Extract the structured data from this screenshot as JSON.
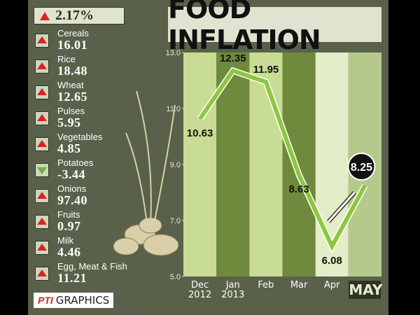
{
  "sidebar": {
    "headline": "2.17%",
    "items": [
      {
        "name": "Cereals",
        "value": "16.01",
        "trend": "up"
      },
      {
        "name": "Rice",
        "value": "18.48",
        "trend": "up"
      },
      {
        "name": "Wheat",
        "value": "12.65",
        "trend": "up"
      },
      {
        "name": "Pulses",
        "value": "5.95",
        "trend": "up"
      },
      {
        "name": "Vegetables",
        "value": "4.85",
        "trend": "up"
      },
      {
        "name": "Potatoes",
        "value": "-3.44",
        "trend": "down"
      },
      {
        "name": "Onions",
        "value": "97.40",
        "trend": "up"
      },
      {
        "name": "Fruits",
        "value": "0.97",
        "trend": "up"
      },
      {
        "name": "Milk",
        "value": "4.46",
        "trend": "up"
      },
      {
        "name": "Egg, Meat & Fish",
        "value": "11.21",
        "trend": "up"
      }
    ]
  },
  "source": {
    "logo": "PTI",
    "text": "GRAPHICS"
  },
  "chart_data": {
    "type": "line",
    "title": "FOOD INFLATION",
    "categories": [
      "Dec\n2012",
      "Jan\n2013",
      "Feb",
      "Mar",
      "Apr",
      "MAY"
    ],
    "values": [
      10.63,
      12.35,
      11.95,
      8.63,
      6.08,
      8.25
    ],
    "color": "#8dc63f",
    "ylim": [
      5,
      13
    ],
    "yticks": [
      {
        "value": 5,
        "label": "5.0"
      },
      {
        "value": 7,
        "label": "7.0"
      },
      {
        "value": 9,
        "label": "9.0"
      },
      {
        "value": 11,
        "label": "11.0"
      },
      {
        "value": 13,
        "label": "13.0"
      }
    ]
  }
}
